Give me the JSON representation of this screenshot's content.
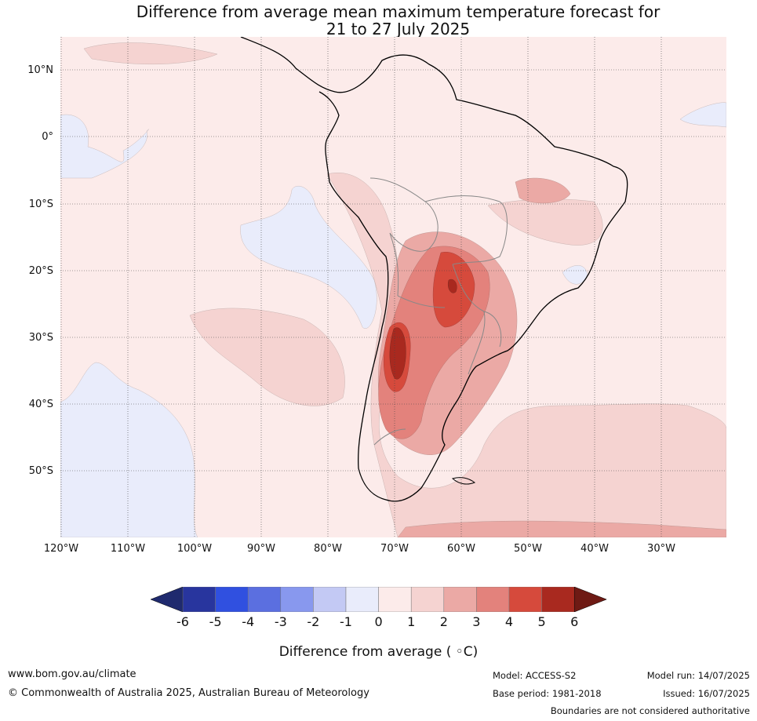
{
  "title": {
    "line1": "Difference from average mean maximum temperature forecast for",
    "line2": "21 to 27 July 2025"
  },
  "map": {
    "lat_labels": [
      "10°N",
      "0°",
      "10°S",
      "20°S",
      "30°S",
      "40°S",
      "50°S"
    ],
    "lon_labels": [
      "120°W",
      "110°W",
      "100°W",
      "90°W",
      "80°W",
      "70°W",
      "60°W",
      "50°W",
      "40°W",
      "30°W"
    ]
  },
  "colorbar": {
    "ticks": [
      "-6",
      "-5",
      "-4",
      "-3",
      "-2",
      "-1",
      "0",
      "1",
      "2",
      "3",
      "4",
      "5",
      "6"
    ],
    "colors": [
      "#28359e",
      "#3050e0",
      "#5b6fe0",
      "#8898ee",
      "#c3c9f4",
      "#e9ecfb",
      "#fcebea",
      "#f5d3d1",
      "#eba9a5",
      "#e3827c",
      "#d64a3c",
      "#a9291f"
    ],
    "extend_low_color": "#1f2a6e",
    "extend_high_color": "#6e1a14",
    "label": "Difference from average ( ◦C)"
  },
  "footer": {
    "website": "www.bom.gov.au/climate",
    "copyright": "© Commonwealth of Australia 2025, Australian Bureau of Meteorology",
    "model": "Model: ACCESS-S2",
    "base_period": "Base period: 1981-2018",
    "model_run": "Model run: 14/07/2025",
    "issued": "Issued: 16/07/2025",
    "disclaimer": "Boundaries are not considered authoritative"
  }
}
